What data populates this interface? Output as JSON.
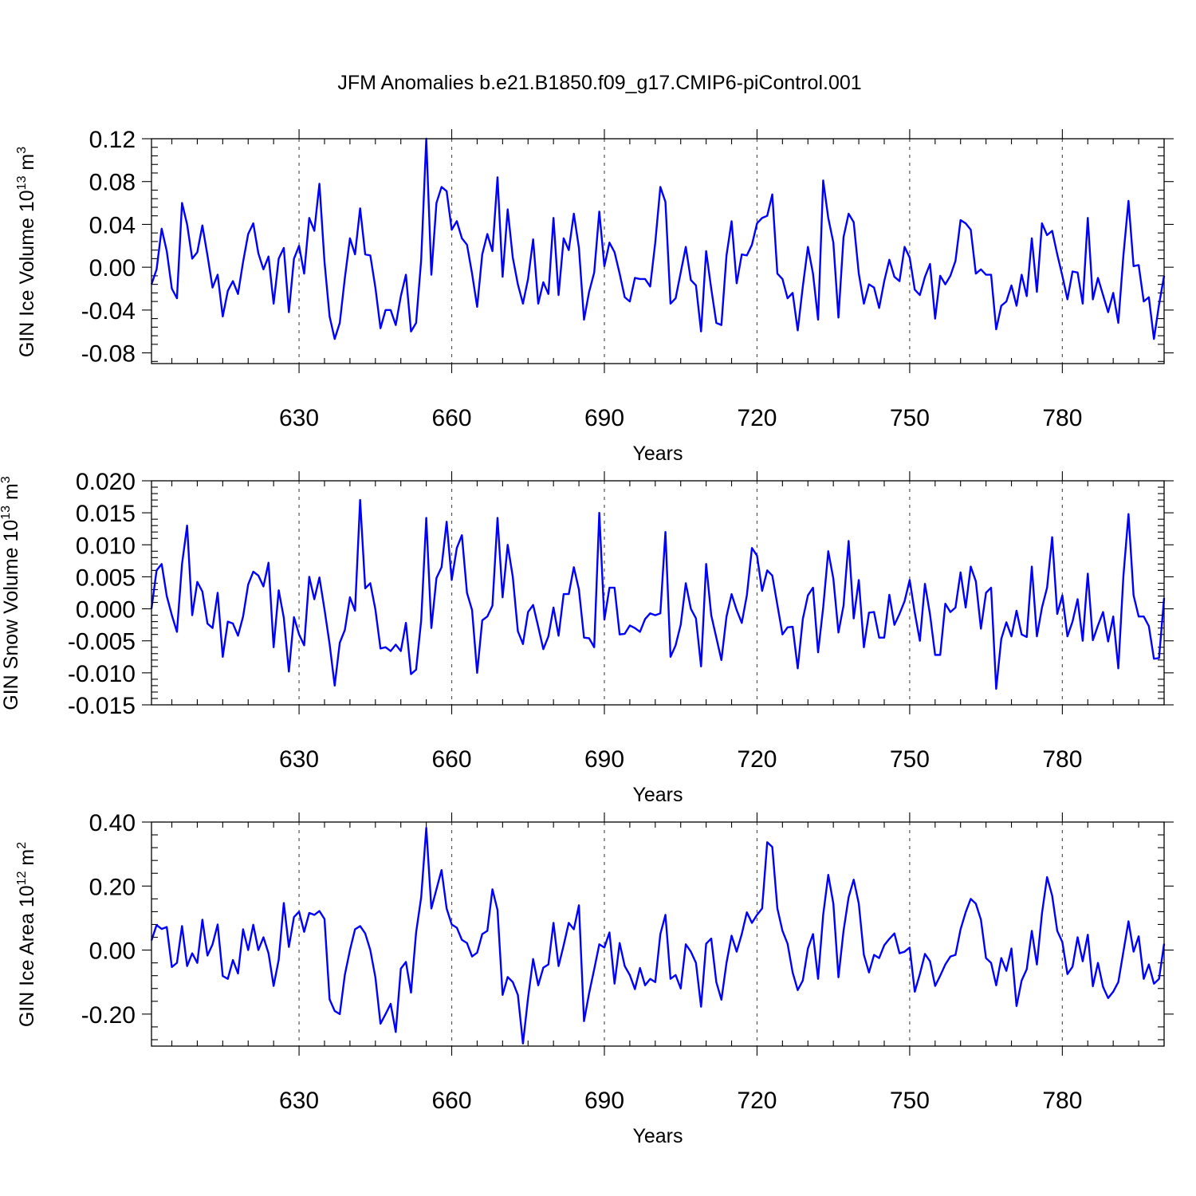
{
  "title": "JFM Anomalies b.e21.B1850.f09_g17.CMIP6-piControl.001",
  "colors": {
    "series": "#0000ff",
    "grid": "#555555",
    "axis": "#000000"
  },
  "chart_data": [
    {
      "type": "line",
      "ylabel": "GIN Ice Volume 10",
      "ylabel_exp": "13",
      "ylabel_unit": " m",
      "ylabel_unit_exp": "3",
      "xlabel": "Years",
      "xlim": [
        601,
        800
      ],
      "ylim": [
        -0.09,
        0.12
      ],
      "xticks": [
        630,
        660,
        690,
        720,
        750,
        780
      ],
      "xtick_labels": [
        "630",
        "660",
        "690",
        "720",
        "750",
        "780"
      ],
      "yticks": [
        0.12,
        0.08,
        0.04,
        0.0,
        -0.04,
        -0.08
      ],
      "ytick_labels": [
        "0.12",
        "0.08",
        "0.04",
        "0.00",
        "-0.04",
        "-0.08"
      ],
      "grid": "vertical dashed at x ticks",
      "series": [
        {
          "x_start": 601,
          "x_step": 1,
          "values": [
            -0.016,
            -0.002,
            0.036,
            0.015,
            -0.02,
            -0.029,
            0.06,
            0.04,
            0.008,
            0.014,
            0.039,
            0.011,
            -0.019,
            -0.007,
            -0.046,
            -0.022,
            -0.013,
            -0.025,
            0.005,
            0.031,
            0.041,
            0.013,
            -0.002,
            0.01,
            -0.034,
            0.008,
            0.018,
            -0.042,
            0.008,
            0.02,
            -0.006,
            0.046,
            0.034,
            0.078,
            0.005,
            -0.046,
            -0.067,
            -0.052,
            -0.01,
            0.027,
            0.012,
            0.055,
            0.012,
            0.011,
            -0.019,
            -0.057,
            -0.04,
            -0.04,
            -0.054,
            -0.027,
            -0.007,
            -0.06,
            -0.052,
            0.007,
            0.12,
            -0.007,
            0.06,
            0.075,
            0.071,
            0.035,
            0.043,
            0.027,
            0.021,
            -0.006,
            -0.037,
            0.012,
            0.031,
            0.015,
            0.084,
            -0.009,
            0.054,
            0.009,
            -0.016,
            -0.034,
            -0.011,
            0.026,
            -0.034,
            -0.014,
            -0.025,
            0.046,
            -0.026,
            0.027,
            0.016,
            0.05,
            0.018,
            -0.049,
            -0.023,
            -0.005,
            0.052,
            0.001,
            0.023,
            0.014,
            -0.006,
            -0.028,
            -0.032,
            -0.01,
            -0.011,
            -0.011,
            -0.018,
            0.023,
            0.075,
            0.061,
            -0.034,
            -0.029,
            -0.005,
            0.019,
            -0.012,
            -0.017,
            -0.06,
            0.015,
            -0.02,
            -0.052,
            -0.054,
            0.011,
            0.043,
            -0.015,
            0.012,
            0.011,
            0.021,
            0.041,
            0.046,
            0.048,
            0.068,
            -0.006,
            -0.011,
            -0.029,
            -0.024,
            -0.059,
            -0.018,
            0.019,
            -0.006,
            -0.049,
            0.081,
            0.046,
            0.023,
            -0.047,
            0.028,
            0.05,
            0.042,
            -0.006,
            -0.034,
            -0.016,
            -0.019,
            -0.038,
            -0.013,
            0.007,
            -0.009,
            -0.013,
            0.019,
            0.009,
            -0.021,
            -0.026,
            -0.009,
            0.003,
            -0.048,
            -0.008,
            -0.016,
            -0.008,
            0.006,
            0.044,
            0.041,
            0.035,
            -0.006,
            -0.002,
            -0.007,
            -0.007,
            -0.058,
            -0.036,
            -0.032,
            -0.017,
            -0.036,
            -0.007,
            -0.027,
            0.027,
            -0.023,
            0.041,
            0.03,
            0.034,
            0.012,
            -0.008,
            -0.03,
            -0.004,
            -0.005,
            -0.034,
            0.046,
            -0.03,
            -0.01,
            -0.026,
            -0.042,
            -0.024,
            -0.052,
            0.011,
            0.062,
            0.001,
            0.002,
            -0.032,
            -0.028,
            -0.067,
            -0.035,
            -0.008
          ]
        }
      ]
    },
    {
      "type": "line",
      "ylabel": "GIN Snow Volume 10",
      "ylabel_exp": "13",
      "ylabel_unit": " m",
      "ylabel_unit_exp": "3",
      "xlabel": "Years",
      "xlim": [
        601,
        800
      ],
      "ylim": [
        -0.015,
        0.02
      ],
      "xticks": [
        630,
        660,
        690,
        720,
        750,
        780
      ],
      "xtick_labels": [
        "630",
        "660",
        "690",
        "720",
        "750",
        "780"
      ],
      "yticks": [
        0.02,
        0.015,
        0.01,
        0.005,
        0.0,
        -0.005,
        -0.01,
        -0.015
      ],
      "ytick_labels": [
        "0.020",
        "0.015",
        "0.010",
        "0.005",
        "0.000",
        "-0.005",
        "-0.010",
        "-0.015"
      ],
      "grid": "vertical dashed at x ticks",
      "series": [
        {
          "x_start": 601,
          "x_step": 1,
          "values": [
            0.0,
            0.006,
            0.007,
            0.002,
            -0.001,
            -0.0036,
            0.007,
            0.013,
            -0.001,
            0.0042,
            0.0027,
            -0.0023,
            -0.003,
            0.0025,
            -0.0075,
            -0.002,
            -0.0023,
            -0.0042,
            -0.0012,
            0.0038,
            0.0058,
            0.0052,
            0.0035,
            0.0072,
            -0.006,
            0.0029,
            -0.0014,
            -0.0098,
            -0.0013,
            -0.004,
            -0.0057,
            0.005,
            0.0015,
            0.0049,
            -0.0001,
            -0.0055,
            -0.012,
            -0.0053,
            -0.0033,
            0.0018,
            -0.0003,
            0.017,
            0.0032,
            0.004,
            -0.0001,
            -0.0062,
            -0.006,
            -0.0066,
            -0.0056,
            -0.0066,
            -0.0022,
            -0.0102,
            -0.0095,
            -0.0018,
            0.0142,
            -0.003,
            0.0048,
            0.0065,
            0.0136,
            0.0045,
            0.0095,
            0.0115,
            0.0025,
            -0.0002,
            -0.01,
            -0.0018,
            -0.0012,
            0.0005,
            0.0142,
            0.0018,
            0.01,
            0.005,
            -0.0035,
            -0.0055,
            -0.0005,
            0.0006,
            -0.0028,
            -0.0063,
            -0.0043,
            0.0002,
            -0.0042,
            0.0023,
            0.0023,
            0.0065,
            0.003,
            -0.0045,
            -0.0046,
            -0.006,
            0.015,
            -0.0017,
            0.0033,
            0.0033,
            -0.004,
            -0.0039,
            -0.0026,
            -0.003,
            -0.0036,
            -0.0016,
            -0.0007,
            -0.001,
            -0.0007,
            0.012,
            -0.0075,
            -0.0057,
            -0.0025,
            0.004,
            0.0,
            -0.0015,
            -0.009,
            0.007,
            -0.001,
            -0.0045,
            -0.008,
            -0.0012,
            0.0023,
            -0.0002,
            -0.0022,
            0.0021,
            0.0095,
            0.0083,
            0.0028,
            0.006,
            0.0052,
            0.0006,
            -0.004,
            -0.0029,
            -0.0028,
            -0.0093,
            -0.0016,
            0.0021,
            0.0033,
            -0.0068,
            0.0002,
            0.009,
            0.0047,
            -0.0037,
            0.0005,
            0.0106,
            -0.0015,
            0.0045,
            -0.006,
            -0.0006,
            -0.0005,
            -0.0045,
            -0.0045,
            0.0022,
            -0.0025,
            -0.0008,
            0.0012,
            0.0045,
            -0.0006,
            -0.005,
            0.0039,
            -0.0009,
            -0.0072,
            -0.0072,
            0.0008,
            -0.0005,
            0.0002,
            0.0057,
            0.0002,
            0.0066,
            0.0043,
            -0.0031,
            0.0025,
            0.0033,
            -0.0125,
            -0.0047,
            -0.0021,
            -0.0043,
            -0.0003,
            -0.004,
            -0.0044,
            0.0066,
            -0.0043,
            0.0002,
            0.0033,
            0.0112,
            -0.0008,
            0.0021,
            -0.0043,
            -0.002,
            0.0015,
            -0.005,
            0.0055,
            -0.0049,
            -0.0026,
            -0.0005,
            -0.0051,
            -0.0012,
            -0.0093,
            0.0051,
            0.0148,
            0.0021,
            -0.0012,
            -0.0012,
            -0.0027,
            -0.0078,
            -0.0077,
            0.0017
          ]
        }
      ]
    },
    {
      "type": "line",
      "ylabel": "GIN Ice Area 10",
      "ylabel_exp": "12",
      "ylabel_unit": " m",
      "ylabel_unit_exp": "2",
      "xlabel": "Years",
      "xlim": [
        601,
        800
      ],
      "ylim": [
        -0.3,
        0.4
      ],
      "xticks": [
        630,
        660,
        690,
        720,
        750,
        780
      ],
      "xtick_labels": [
        "630",
        "660",
        "690",
        "720",
        "750",
        "780"
      ],
      "yticks": [
        0.4,
        0.2,
        0.0,
        -0.2
      ],
      "ytick_labels": [
        "0.40",
        "0.20",
        "0.00",
        "-0.20"
      ],
      "grid": "vertical dashed at x ticks",
      "series": [
        {
          "x_start": 601,
          "x_step": 1,
          "values": [
            0.03,
            0.078,
            0.066,
            0.072,
            -0.053,
            -0.04,
            0.075,
            -0.05,
            -0.01,
            -0.04,
            0.095,
            -0.017,
            0.018,
            0.08,
            -0.081,
            -0.09,
            -0.031,
            -0.073,
            0.065,
            0.0,
            0.079,
            0.0,
            0.04,
            -0.01,
            -0.112,
            -0.03,
            0.147,
            0.01,
            0.103,
            0.12,
            0.057,
            0.116,
            0.11,
            0.122,
            0.097,
            -0.154,
            -0.19,
            -0.2,
            -0.077,
            0.0,
            0.065,
            0.075,
            0.052,
            0.0,
            -0.085,
            -0.23,
            -0.2,
            -0.168,
            -0.256,
            -0.058,
            -0.037,
            -0.133,
            0.055,
            0.165,
            0.382,
            0.13,
            0.19,
            0.25,
            0.13,
            0.08,
            0.07,
            0.032,
            0.022,
            -0.02,
            -0.008,
            0.05,
            0.06,
            0.19,
            0.125,
            -0.14,
            -0.084,
            -0.1,
            -0.14,
            -0.292,
            -0.15,
            -0.028,
            -0.11,
            -0.055,
            -0.045,
            0.085,
            -0.05,
            0.015,
            0.085,
            0.065,
            0.14,
            -0.222,
            -0.135,
            -0.06,
            0.018,
            0.008,
            0.055,
            -0.105,
            0.022,
            -0.05,
            -0.078,
            -0.122,
            -0.056,
            -0.11,
            -0.09,
            -0.1,
            0.05,
            0.11,
            -0.09,
            -0.078,
            -0.12,
            0.018,
            -0.005,
            -0.04,
            -0.177,
            0.02,
            0.036,
            -0.1,
            -0.155,
            -0.04,
            0.045,
            -0.005,
            0.05,
            0.118,
            0.085,
            0.11,
            0.13,
            0.337,
            0.322,
            0.13,
            0.06,
            0.02,
            -0.07,
            -0.125,
            -0.095,
            0.005,
            0.05,
            -0.09,
            0.11,
            0.235,
            0.145,
            -0.085,
            0.06,
            0.165,
            0.22,
            0.145,
            -0.015,
            -0.07,
            -0.015,
            -0.025,
            0.015,
            0.035,
            0.052,
            -0.01,
            -0.005,
            0.008,
            -0.13,
            -0.075,
            -0.012,
            -0.035,
            -0.112,
            -0.08,
            -0.045,
            -0.02,
            -0.015,
            0.065,
            0.118,
            0.16,
            0.145,
            0.095,
            -0.025,
            -0.04,
            -0.11,
            -0.025,
            -0.065,
            0.005,
            -0.175,
            -0.095,
            -0.06,
            0.06,
            -0.045,
            0.115,
            0.228,
            0.17,
            0.06,
            0.025,
            -0.075,
            -0.052,
            0.04,
            -0.035,
            0.048,
            -0.113,
            -0.04,
            -0.115,
            -0.15,
            -0.13,
            -0.1,
            -0.005,
            0.09,
            -0.005,
            0.043,
            -0.09,
            -0.045,
            -0.105,
            -0.09,
            0.02
          ]
        }
      ]
    }
  ]
}
